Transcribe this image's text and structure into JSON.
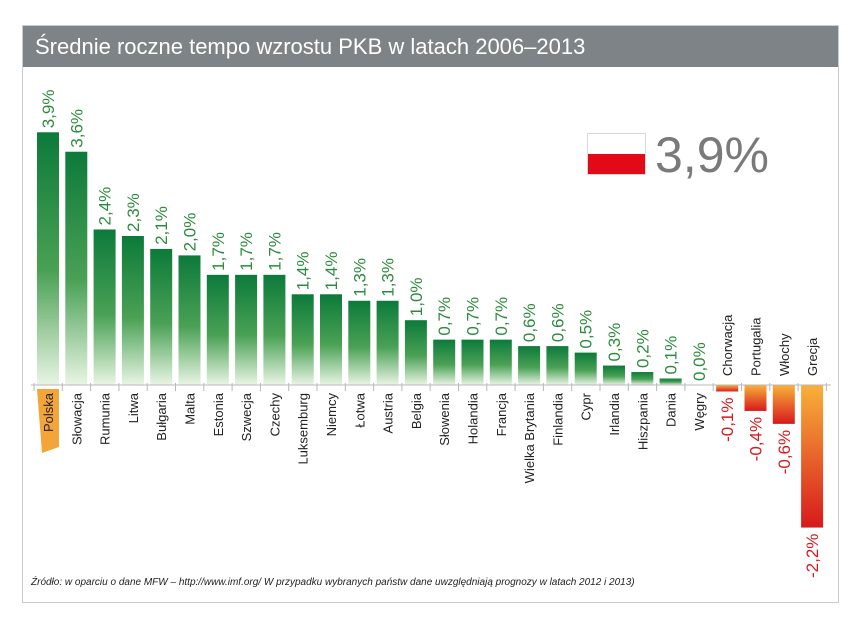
{
  "title": "Średnie roczne tempo wzrostu PKB w latach 2006–2013",
  "highlight": {
    "value_label": "3,9%",
    "country": "Polska"
  },
  "source_note": "Źródło: w oparciu o dane MFW – http://www.imf.org/ W przypadku wybranych państw dane uwzględniają prognozy w latach 2012 i 2013)",
  "colors": {
    "title_bg": "#7d8386",
    "positive_dark": "#0c7a3a",
    "positive_light": "#e9f5e4",
    "positive_label": "#2e8b3e",
    "negative_dark": "#d7191c",
    "negative_light": "#f8b13a",
    "negative_label": "#d7191c",
    "highlight_tag": "#f4a53a",
    "flag_red": "#e30a17"
  },
  "chart_data": {
    "type": "bar",
    "title": "Średnie roczne tempo wzrostu PKB w latach 2006–2013",
    "xlabel": "",
    "ylabel": "",
    "unit": "%",
    "ylim": [
      -2.2,
      3.9
    ],
    "categories": [
      "Polska",
      "Słowacja",
      "Rumunia",
      "Litwa",
      "Bułgaria",
      "Malta",
      "Estonia",
      "Szwecja",
      "Czechy",
      "Luksemburg",
      "Niemcy",
      "Łotwa",
      "Austria",
      "Belgia",
      "Słowenia",
      "Holandia",
      "Francja",
      "Wielka Brytania",
      "Finlandia",
      "Cypr",
      "Irlandia",
      "Hiszpania",
      "Dania",
      "Węgry",
      "Chorwacja",
      "Portugalia",
      "Włochy",
      "Grecja"
    ],
    "values": [
      3.9,
      3.6,
      2.4,
      2.3,
      2.1,
      2.0,
      1.7,
      1.7,
      1.7,
      1.4,
      1.4,
      1.3,
      1.3,
      1.0,
      0.7,
      0.7,
      0.7,
      0.6,
      0.6,
      0.5,
      0.3,
      0.2,
      0.1,
      0.0,
      -0.1,
      -0.4,
      -0.6,
      -2.2
    ],
    "value_labels": [
      "3,9%",
      "3,6%",
      "2,4%",
      "2,3%",
      "2,1%",
      "2,0%",
      "1,7%",
      "1,7%",
      "1,7%",
      "1,4%",
      "1,4%",
      "1,3%",
      "1,3%",
      "1,0%",
      "0,7%",
      "0,7%",
      "0,7%",
      "0,6%",
      "0,6%",
      "0,5%",
      "0,3%",
      "0,2%",
      "0,1%",
      "0,0%",
      "-0,1%",
      "-0,4%",
      "-0,6%",
      "-2,2%"
    ],
    "grid": false,
    "legend": "none"
  }
}
